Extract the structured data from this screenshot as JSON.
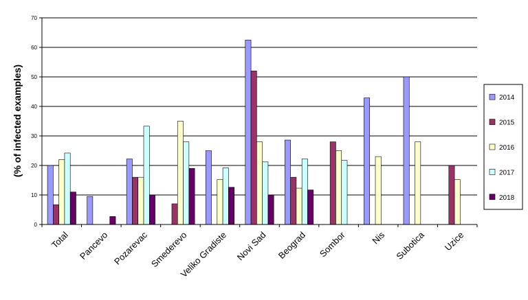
{
  "chart_data": {
    "type": "bar",
    "title": "",
    "xlabel": "",
    "ylabel": "(% of infected examples)",
    "ylim": [
      0,
      70
    ],
    "yticks": [
      0,
      10,
      20,
      30,
      40,
      50,
      60,
      70
    ],
    "grid": true,
    "legend_position": "right",
    "categories": [
      "Total",
      "Pancevo",
      "Pozarevac",
      "Smederevo",
      "Veliko Gradiste",
      "Novi Sad",
      "Beograd",
      "Sombor",
      "Nis",
      "Subotica",
      "Uzice"
    ],
    "series": [
      {
        "name": "2014",
        "color": "#9999ff",
        "values": [
          20,
          9.5,
          22.2,
          null,
          25,
          62.5,
          28.6,
          null,
          42.9,
          50,
          null
        ]
      },
      {
        "name": "2015",
        "color": "#993366",
        "values": [
          6.7,
          null,
          16,
          7,
          null,
          52,
          16,
          28,
          null,
          null,
          20
        ]
      },
      {
        "name": "2016",
        "color": "#ffffcc",
        "values": [
          22,
          null,
          16,
          35,
          15.2,
          28,
          12.3,
          25,
          23,
          28,
          15.2
        ]
      },
      {
        "name": "2017",
        "color": "#ccffff",
        "values": [
          24.2,
          null,
          33.3,
          28,
          19.2,
          21.2,
          22.2,
          21.7,
          null,
          null,
          null
        ]
      },
      {
        "name": "2018",
        "color": "#660066",
        "values": [
          11,
          2.7,
          10,
          19,
          12.6,
          10,
          11.7,
          null,
          null,
          null,
          null
        ]
      }
    ]
  }
}
